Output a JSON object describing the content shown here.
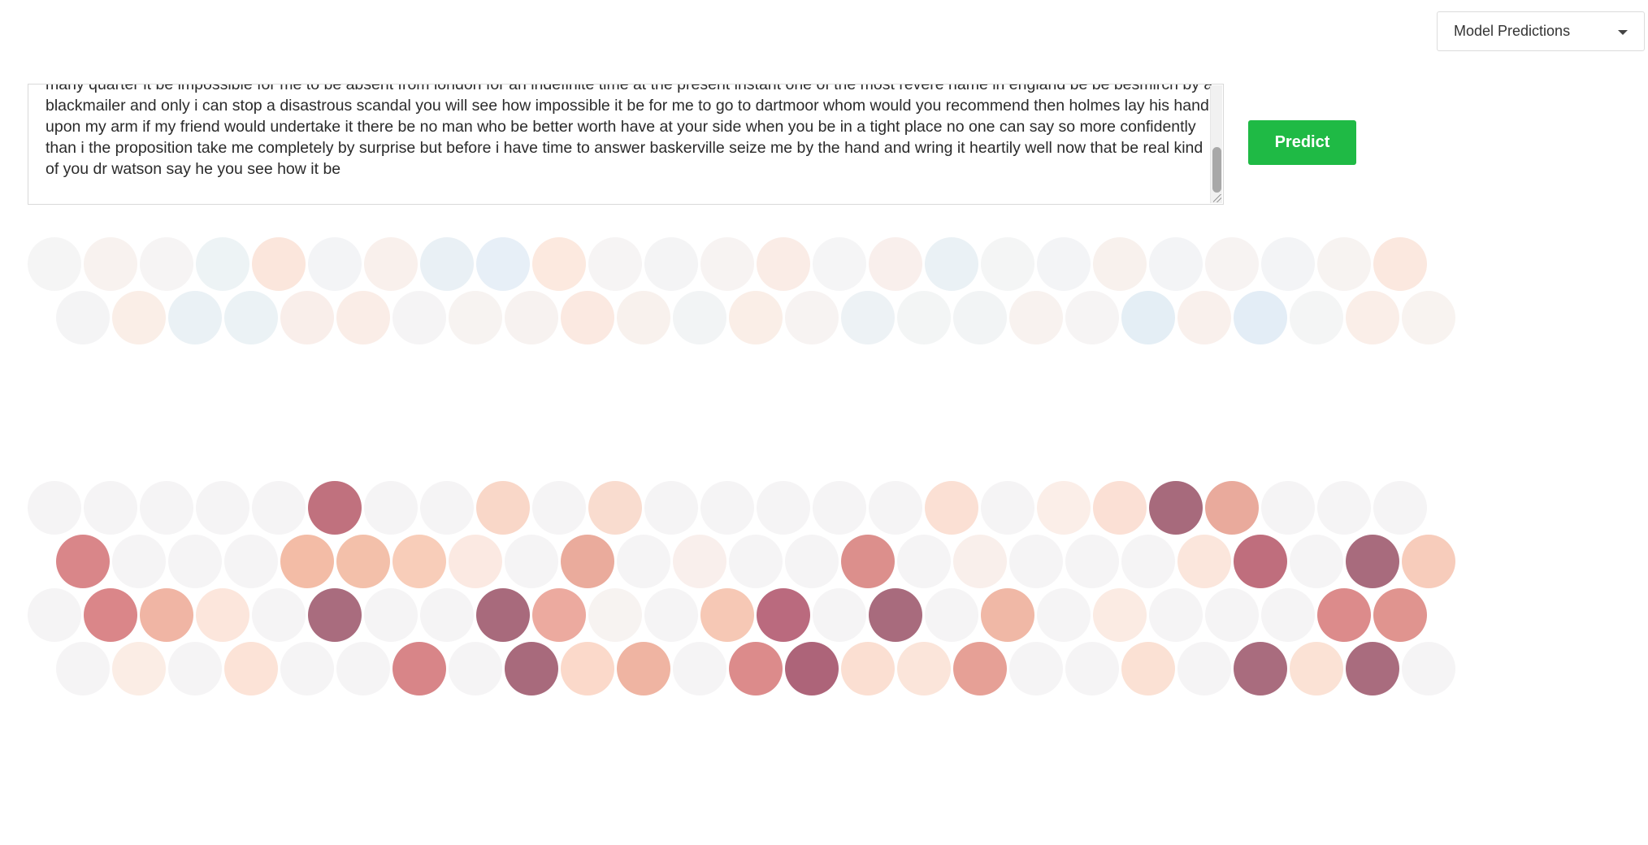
{
  "header": {
    "model_select": {
      "selected": "Model Predictions",
      "icon": "caret-down-icon"
    }
  },
  "input": {
    "text": "many quarter it be impossible for me to be absent from london for an indefinite time at the present instant one of the most revere name in england be be besmirch by a blackmailer and only i can stop a disastrous scandal you will see how impossible it be for me to go to dartmoor whom would you recommend then holmes lay his hand upon my arm if my friend would undertake it there be no man who be better worth have at your side when you be in a tight place no one can say so more confidently than i the proposition take me completely by surprise but before i have time to answer baskerville seize me by the hand and wring it heartily well now that be real kind of you dr watson say he you see how it be"
  },
  "actions": {
    "predict_label": "Predict",
    "predict_color": "#1fba45"
  },
  "grids": [
    {
      "name": "upper-prediction-grid",
      "rows": [
        [
          "#f5f5f5",
          "#f8f2ef",
          "#f6f4f4",
          "#edf3f5",
          "#fbe6dc",
          "#f3f4f6",
          "#f9f0ec",
          "#e9f0f5",
          "#e7eff7",
          "#fce9df",
          "#f6f4f4",
          "#f4f4f5",
          "#f7f3f2",
          "#faece6",
          "#f5f5f6",
          "#f9efec",
          "#eaf1f5",
          "#f4f5f5",
          "#f3f4f6",
          "#f8f1ed",
          "#f3f4f6",
          "#f7f3f2",
          "#f3f4f6",
          "#f7f3f1",
          "#fbe8df"
        ],
        [
          "#f4f4f5",
          "#faeee7",
          "#eaf1f5",
          "#ebf2f5",
          "#f9eeea",
          "#faede7",
          "#f5f4f5",
          "#f7f3f1",
          "#f7f2f0",
          "#fbe9e1",
          "#f8f1ed",
          "#f2f4f5",
          "#faeee7",
          "#f7f3f2",
          "#edf2f5",
          "#f3f5f5",
          "#f2f4f5",
          "#f8f2ef",
          "#f6f4f4",
          "#e4eef5",
          "#f9f0ec",
          "#e3edf6",
          "#f4f5f5",
          "#faeee8",
          "#f8f3f0"
        ]
      ]
    },
    {
      "name": "lower-prediction-grid",
      "rows": [
        [
          "#f5f4f5",
          "#f5f4f5",
          "#f5f4f5",
          "#f5f4f5",
          "#f5f4f5",
          "#c0717e",
          "#f5f4f5",
          "#f5f4f5",
          "#f9d7c8",
          "#f5f4f5",
          "#f9dccf",
          "#f5f4f5",
          "#f5f4f5",
          "#f5f4f5",
          "#f5f4f5",
          "#f5f4f5",
          "#fbe0d4",
          "#f5f4f5",
          "#fbeee8",
          "#fbe0d5",
          "#a76a7c",
          "#e9aa9c",
          "#f5f4f5",
          "#f5f4f5",
          "#f5f4f5"
        ],
        [
          "#d98689",
          "#f5f4f5",
          "#f5f4f5",
          "#f5f4f5",
          "#f3bca6",
          "#f3c0aa",
          "#f8cdb9",
          "#fbe9e2",
          "#f5f4f5",
          "#eaab9c",
          "#f5f4f5",
          "#f9efec",
          "#f5f4f5",
          "#f5f4f5",
          "#dc8f8c",
          "#f5f4f5",
          "#f9efeb",
          "#f5f4f5",
          "#f5f4f5",
          "#f5f4f5",
          "#fbe6dc",
          "#bf6e7d",
          "#f5f4f5",
          "#a86b7d",
          "#f7ccbb"
        ],
        [
          "#f5f4f5",
          "#da8689",
          "#f0b5a4",
          "#fce6dc",
          "#f5f4f5",
          "#a96c7e",
          "#f5f4f5",
          "#f5f4f5",
          "#a86a7c",
          "#ecaa9f",
          "#f7f3f1",
          "#f5f4f5",
          "#f6c8b5",
          "#ba6a7e",
          "#f5f4f5",
          "#a86b7d",
          "#f5f4f5",
          "#f0b8a6",
          "#f5f4f5",
          "#fbebe3",
          "#f5f4f5",
          "#f5f4f5",
          "#f5f4f5",
          "#dc8b8b",
          "#e0948f"
        ],
        [
          "#f5f4f5",
          "#fbede5",
          "#f5f4f5",
          "#fce3d7",
          "#f5f4f5",
          "#f5f4f5",
          "#d88588",
          "#f5f4f5",
          "#a86a7c",
          "#fbd9ca",
          "#efb4a2",
          "#f5f4f5",
          "#dc8b8b",
          "#ad6479",
          "#fbdfd2",
          "#fbe5da",
          "#e6a096",
          "#f5f4f5",
          "#f5f4f5",
          "#fbe1d4",
          "#f5f4f5",
          "#a96c7e",
          "#fbe2d5",
          "#a96c7e",
          "#f5f4f5"
        ]
      ]
    }
  ]
}
